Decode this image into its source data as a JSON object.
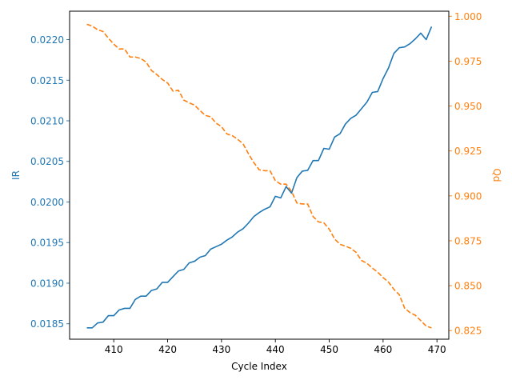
{
  "chart_data": {
    "type": "line",
    "xlabel": "Cycle Index",
    "ylabel_left": "IR",
    "ylabel_right": "Qd",
    "xlim": [
      401.8,
      472.2
    ],
    "ylim_left": [
      0.01831,
      0.02235
    ],
    "ylim_right": [
      0.8202,
      1.0028
    ],
    "x_ticks": [
      410,
      420,
      430,
      440,
      450,
      460,
      470
    ],
    "y_left_ticks": [
      0.0185,
      0.019,
      0.0195,
      0.02,
      0.0205,
      0.021,
      0.0215,
      0.022
    ],
    "y_left_tick_labels": [
      "0.0185",
      "0.0190",
      "0.0195",
      "0.0200",
      "0.0205",
      "0.0210",
      "0.0215",
      "0.0220"
    ],
    "y_right_ticks": [
      0.825,
      0.85,
      0.875,
      0.9,
      0.925,
      0.95,
      0.975,
      1.0
    ],
    "y_right_tick_labels": [
      "0.825",
      "0.850",
      "0.875",
      "0.900",
      "0.925",
      "0.950",
      "0.975",
      "1.000"
    ],
    "grid": false,
    "colors": {
      "ir": "#1f77b4",
      "qd": "#ff7f0e"
    },
    "series": [
      {
        "axis": "left",
        "style": "solid",
        "x": [
          405,
          406,
          407,
          408,
          409,
          410,
          411,
          412,
          413,
          414,
          415,
          416,
          417,
          418,
          419,
          420,
          421,
          422,
          423,
          424,
          425,
          426,
          427,
          428,
          429,
          430,
          431,
          432,
          433,
          434,
          435,
          436,
          437,
          438,
          439,
          440,
          441,
          442,
          443,
          444,
          445,
          446,
          447,
          448,
          449,
          450,
          451,
          452,
          453,
          454,
          455,
          456,
          457,
          458,
          459,
          460,
          461,
          462,
          463,
          464,
          465,
          466,
          467,
          468,
          469
        ],
        "values": [
          0.01845,
          0.01845,
          0.01851,
          0.01852,
          0.0186,
          0.0186,
          0.01867,
          0.01869,
          0.01869,
          0.0188,
          0.01884,
          0.01884,
          0.01891,
          0.01893,
          0.01901,
          0.01901,
          0.01908,
          0.01915,
          0.01917,
          0.01925,
          0.01927,
          0.01932,
          0.01934,
          0.01942,
          0.01945,
          0.01948,
          0.01953,
          0.01957,
          0.01963,
          0.01967,
          0.01974,
          0.01982,
          0.01987,
          0.01991,
          0.01994,
          0.02007,
          0.02005,
          0.02019,
          0.02011,
          0.0203,
          0.02038,
          0.02039,
          0.02051,
          0.02051,
          0.02066,
          0.02065,
          0.0208,
          0.02084,
          0.02096,
          0.02103,
          0.02107,
          0.02115,
          0.02123,
          0.02135,
          0.02136,
          0.02152,
          0.02165,
          0.02183,
          0.0219,
          0.02191,
          0.02195,
          0.02201,
          0.02208,
          0.022,
          0.02216
        ]
      },
      {
        "axis": "right",
        "style": "dashed",
        "x": [
          405,
          406,
          407,
          408,
          409,
          410,
          411,
          412,
          413,
          414,
          415,
          416,
          417,
          418,
          419,
          420,
          421,
          422,
          423,
          424,
          425,
          426,
          427,
          428,
          429,
          430,
          431,
          432,
          433,
          434,
          435,
          436,
          437,
          438,
          439,
          440,
          441,
          442,
          443,
          444,
          445,
          446,
          447,
          448,
          449,
          450,
          451,
          452,
          453,
          454,
          455,
          456,
          457,
          458,
          459,
          460,
          461,
          462,
          463,
          464,
          465,
          466,
          467,
          468,
          469
        ],
        "values": [
          0.9955,
          0.9945,
          0.9925,
          0.9915,
          0.9878,
          0.9845,
          0.9818,
          0.9818,
          0.9773,
          0.9773,
          0.9765,
          0.9745,
          0.9698,
          0.9675,
          0.9648,
          0.9628,
          0.9583,
          0.9588,
          0.9533,
          0.9518,
          0.9505,
          0.9475,
          0.9448,
          0.944,
          0.9405,
          0.9385,
          0.9345,
          0.9335,
          0.9315,
          0.929,
          0.9235,
          0.9185,
          0.9145,
          0.914,
          0.914,
          0.9085,
          0.9065,
          0.9065,
          0.9025,
          0.896,
          0.8955,
          0.8955,
          0.8885,
          0.8855,
          0.885,
          0.8815,
          0.876,
          0.873,
          0.872,
          0.8708,
          0.8685,
          0.864,
          0.8625,
          0.8598,
          0.8575,
          0.8545,
          0.852,
          0.848,
          0.845,
          0.8375,
          0.835,
          0.8335,
          0.8305,
          0.8275,
          0.8265
        ]
      }
    ]
  }
}
